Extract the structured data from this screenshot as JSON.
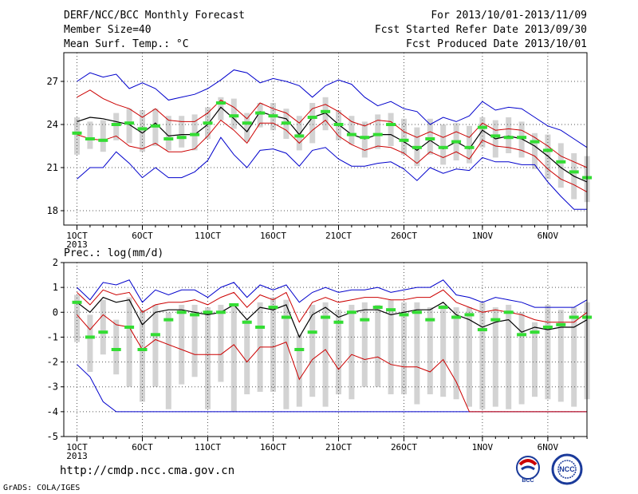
{
  "header": {
    "title_left": "DERF/NCC/BCC Monthly Forecast",
    "member_size": "Member Size=40",
    "variable": "Mean Surf. Temp.: °C",
    "forecast_period": "For 2013/10/01-2013/11/09",
    "refer_date": "Fcst Started Refer Date 2013/09/30",
    "produced_date": "Fcst Produced Date 2013/10/01"
  },
  "lower_label": "Prec.: log(mm/d)",
  "footer": {
    "url": "http://cmdp.ncc.cma.gov.cn",
    "credit": "GrADS: COLA/IGES"
  },
  "logos": {
    "bcc": "BCC",
    "ncc": "NCC"
  },
  "colors": {
    "envelope": "#0000cc",
    "spread": "#cc0000",
    "mean": "#000000",
    "median": "#33dd33",
    "box": "#d3d3d3"
  },
  "chart_data": [
    {
      "type": "line",
      "x_tick_labels": [
        "1OCT\n2013",
        "6OCT",
        "11OCT",
        "16OCT",
        "21OCT",
        "26OCT",
        "1NOV",
        "6NOV"
      ],
      "x_tick_days": [
        1,
        6,
        11,
        16,
        21,
        26,
        32,
        37
      ],
      "x": [
        1,
        2,
        3,
        4,
        5,
        6,
        7,
        8,
        9,
        10,
        11,
        12,
        13,
        14,
        15,
        16,
        17,
        18,
        19,
        20,
        21,
        22,
        23,
        24,
        25,
        26,
        27,
        28,
        29,
        30,
        31,
        32,
        33,
        34,
        35,
        36,
        37,
        38,
        39,
        40
      ],
      "ylim": [
        17,
        29
      ],
      "yticks": [
        18,
        21,
        24,
        27
      ],
      "grid": true,
      "series": [
        {
          "role": "max",
          "values": [
            27.0,
            27.6,
            27.3,
            27.5,
            26.5,
            26.9,
            26.5,
            25.7,
            25.9,
            26.1,
            26.5,
            27.1,
            27.8,
            27.6,
            26.9,
            27.2,
            27.0,
            26.7,
            25.9,
            26.7,
            27.1,
            26.8,
            25.9,
            25.3,
            25.6,
            25.1,
            24.9,
            24.0,
            24.5,
            24.2,
            24.6,
            25.6,
            25.0,
            25.2,
            25.1,
            24.5,
            23.9,
            23.6,
            23.0,
            22.4
          ]
        },
        {
          "role": "upper",
          "values": [
            25.9,
            26.4,
            25.8,
            25.4,
            25.1,
            24.5,
            25.1,
            24.3,
            24.2,
            24.2,
            24.8,
            25.7,
            25.2,
            24.4,
            25.5,
            25.1,
            24.8,
            24.1,
            25.1,
            25.4,
            24.9,
            24.2,
            23.9,
            24.3,
            24.2,
            23.5,
            23.1,
            23.5,
            23.1,
            23.5,
            23.1,
            24.1,
            23.6,
            23.7,
            23.6,
            23.1,
            22.5,
            21.8,
            21.4,
            21.0
          ]
        },
        {
          "role": "mean",
          "values": [
            24.2,
            24.5,
            24.4,
            24.2,
            24.0,
            23.4,
            24.1,
            23.2,
            23.3,
            23.3,
            24.0,
            25.2,
            24.4,
            23.5,
            24.9,
            24.6,
            24.4,
            23.3,
            24.5,
            24.8,
            24.0,
            23.3,
            23.0,
            23.3,
            23.3,
            22.8,
            22.2,
            22.9,
            22.3,
            22.8,
            22.3,
            23.6,
            23.0,
            23.2,
            23.0,
            22.5,
            21.8,
            21.0,
            20.4,
            20.0
          ]
        },
        {
          "role": "lower",
          "values": [
            23.3,
            23.0,
            22.9,
            23.2,
            22.5,
            22.3,
            22.7,
            22.1,
            22.1,
            22.3,
            23.2,
            24.3,
            23.6,
            22.7,
            24.1,
            24.1,
            23.6,
            22.7,
            23.6,
            24.3,
            23.2,
            22.6,
            22.2,
            22.5,
            22.4,
            22.0,
            21.3,
            22.1,
            21.7,
            22.1,
            21.6,
            22.9,
            22.5,
            22.4,
            22.2,
            21.8,
            20.9,
            20.2,
            19.8,
            19.3
          ]
        },
        {
          "role": "min",
          "values": [
            20.2,
            21.0,
            21.0,
            22.1,
            21.3,
            20.3,
            21.0,
            20.3,
            20.3,
            20.7,
            21.5,
            23.1,
            21.9,
            21.0,
            22.2,
            22.3,
            22.0,
            21.1,
            22.2,
            22.4,
            21.6,
            21.1,
            21.1,
            21.3,
            21.4,
            20.9,
            20.1,
            21.0,
            20.6,
            20.9,
            20.8,
            21.7,
            21.4,
            21.4,
            21.2,
            21.2,
            20.0,
            19.0,
            18.1,
            18.1
          ]
        },
        {
          "role": "median",
          "values": [
            23.4,
            23.0,
            22.9,
            24.0,
            24.1,
            23.7,
            23.9,
            23.0,
            23.1,
            23.3,
            24.1,
            25.5,
            24.6,
            24.1,
            24.8,
            24.6,
            24.1,
            23.2,
            24.5,
            24.9,
            24.0,
            23.3,
            23.1,
            23.3,
            24.0,
            22.9,
            22.4,
            23.0,
            22.4,
            22.8,
            22.4,
            23.8,
            23.2,
            23.1,
            23.1,
            22.8,
            22.2,
            21.4,
            20.7,
            20.3
          ]
        },
        {
          "role": "box_high",
          "values": [
            24.5,
            24.2,
            24.3,
            24.8,
            25.1,
            25.0,
            25.1,
            24.6,
            24.6,
            24.7,
            25.2,
            25.9,
            25.8,
            24.8,
            25.5,
            25.5,
            25.1,
            24.6,
            25.5,
            25.9,
            25.0,
            24.6,
            24.2,
            24.7,
            24.8,
            24.4,
            23.8,
            24.4,
            24.0,
            24.1,
            23.9,
            24.5,
            24.3,
            24.5,
            24.2,
            23.4,
            23.3,
            22.7,
            22.0,
            21.8
          ]
        },
        {
          "role": "box_low",
          "values": [
            21.9,
            22.3,
            22.1,
            22.9,
            22.7,
            22.1,
            22.5,
            22.2,
            22.4,
            22.2,
            23.0,
            24.3,
            23.7,
            22.8,
            23.8,
            23.6,
            23.0,
            22.2,
            22.7,
            23.6,
            22.9,
            22.6,
            21.7,
            22.3,
            22.5,
            21.9,
            21.1,
            21.9,
            21.2,
            21.5,
            21.3,
            22.4,
            21.7,
            22.0,
            21.7,
            20.9,
            20.2,
            19.6,
            18.8,
            18.6
          ]
        }
      ]
    },
    {
      "type": "line",
      "x_tick_labels": [
        "1OCT\n2013",
        "6OCT",
        "11OCT",
        "16OCT",
        "21OCT",
        "26OCT",
        "1NOV",
        "6NOV"
      ],
      "x_tick_days": [
        1,
        6,
        11,
        16,
        21,
        26,
        32,
        37
      ],
      "x": [
        1,
        2,
        3,
        4,
        5,
        6,
        7,
        8,
        9,
        10,
        11,
        12,
        13,
        14,
        15,
        16,
        17,
        18,
        19,
        20,
        21,
        22,
        23,
        24,
        25,
        26,
        27,
        28,
        29,
        30,
        31,
        32,
        33,
        34,
        35,
        36,
        37,
        38,
        39,
        40
      ],
      "ylim": [
        -5,
        2
      ],
      "yticks": [
        -5,
        -4,
        -3,
        -2,
        -1,
        0,
        1,
        2
      ],
      "ylabel": "Prec.: log(mm/d)",
      "grid": true,
      "series": [
        {
          "role": "max",
          "values": [
            1.0,
            0.5,
            1.2,
            1.1,
            1.3,
            0.4,
            0.9,
            0.7,
            0.9,
            0.9,
            0.6,
            1.0,
            1.2,
            0.6,
            1.1,
            0.9,
            1.1,
            0.4,
            0.8,
            1.0,
            0.8,
            0.9,
            0.9,
            1.0,
            0.8,
            0.9,
            1.0,
            1.0,
            1.3,
            0.7,
            0.6,
            0.4,
            0.6,
            0.5,
            0.4,
            0.2,
            0.2,
            0.2,
            0.2,
            0.5
          ]
        },
        {
          "role": "upper",
          "values": [
            0.8,
            0.3,
            0.9,
            0.7,
            0.8,
            0.0,
            0.3,
            0.4,
            0.4,
            0.5,
            0.3,
            0.6,
            0.8,
            0.2,
            0.7,
            0.5,
            0.8,
            -0.4,
            0.4,
            0.6,
            0.4,
            0.5,
            0.6,
            0.6,
            0.5,
            0.5,
            0.6,
            0.6,
            0.9,
            0.4,
            0.2,
            0.0,
            0.1,
            0.0,
            -0.1,
            -0.3,
            -0.4,
            -0.4,
            -0.4,
            0.0
          ]
        },
        {
          "role": "mean",
          "values": [
            0.4,
            0.0,
            0.6,
            0.4,
            0.5,
            -0.5,
            0.0,
            0.1,
            0.1,
            0.0,
            -0.1,
            0.0,
            0.3,
            -0.3,
            0.2,
            0.1,
            0.3,
            -1.0,
            -0.1,
            0.2,
            -0.2,
            0.0,
            0.1,
            0.1,
            -0.1,
            0.0,
            0.1,
            0.1,
            0.4,
            -0.1,
            -0.3,
            -0.6,
            -0.4,
            -0.3,
            -0.8,
            -0.6,
            -0.7,
            -0.6,
            -0.6,
            -0.3
          ]
        },
        {
          "role": "lower",
          "values": [
            -0.1,
            -0.7,
            -0.1,
            -0.5,
            -0.6,
            -1.5,
            -1.1,
            -1.3,
            -1.5,
            -1.7,
            -1.7,
            -1.7,
            -1.3,
            -2.0,
            -1.4,
            -1.4,
            -1.2,
            -2.7,
            -1.9,
            -1.5,
            -2.3,
            -1.7,
            -1.9,
            -1.8,
            -2.1,
            -2.2,
            -2.2,
            -2.4,
            -1.9,
            -2.8,
            -4.0,
            -4.0,
            -4.0,
            -4.0,
            -4.0,
            -4.0,
            -4.0,
            -4.0,
            -4.0,
            -4.0
          ]
        },
        {
          "role": "min",
          "values": [
            -2.1,
            -2.6,
            -3.6,
            -4.0,
            -4.0,
            -4.0,
            -4.0,
            -4.0,
            -4.0,
            -4.0,
            -4.0,
            -4.0,
            -4.0,
            -4.0,
            -4.0,
            -4.0,
            -4.0,
            -4.0,
            -4.0,
            -4.0,
            -4.0,
            -4.0,
            -4.0,
            -4.0,
            -4.0,
            -4.0,
            -4.0,
            -4.0,
            -4.0,
            -4.0,
            -4.0,
            -4.0,
            -4.0,
            -4.0,
            -4.0,
            -4.0,
            -4.0,
            -4.0,
            -4.0,
            -4.0
          ]
        },
        {
          "role": "median",
          "values": [
            0.4,
            -1.0,
            -0.8,
            -1.5,
            -0.6,
            -1.5,
            -0.9,
            -0.3,
            0.0,
            -0.1,
            0.0,
            0.0,
            0.3,
            -0.4,
            -0.6,
            0.2,
            -0.2,
            -1.5,
            -0.8,
            -0.2,
            -0.4,
            0.0,
            -0.3,
            0.2,
            0.1,
            -0.1,
            0.0,
            -0.3,
            0.2,
            -0.2,
            -0.1,
            -0.7,
            -0.3,
            0.0,
            -0.9,
            -0.8,
            -0.6,
            -0.5,
            -0.2,
            -0.2
          ]
        },
        {
          "role": "box_high",
          "values": [
            0.7,
            -0.1,
            0.5,
            -0.3,
            0.6,
            0.1,
            0.3,
            0.0,
            0.3,
            0.3,
            0.2,
            0.3,
            0.3,
            -0.3,
            0.4,
            0.6,
            0.5,
            -0.9,
            0.3,
            0.4,
            0.1,
            0.3,
            0.4,
            0.3,
            0.5,
            0.4,
            0.4,
            0.2,
            0.3,
            0.2,
            0.2,
            0.4,
            0.2,
            0.3,
            0.0,
            -0.4,
            0.3,
            0.1,
            0.2,
            0.4
          ]
        },
        {
          "role": "box_low",
          "values": [
            -1.2,
            -2.4,
            -1.7,
            -2.5,
            -3.0,
            -3.6,
            -3.0,
            -3.9,
            -2.9,
            -2.6,
            -3.9,
            -2.8,
            -4.0,
            -3.3,
            -3.2,
            -3.2,
            -3.9,
            -3.8,
            -3.4,
            -3.8,
            -3.3,
            -3.5,
            -3.0,
            -3.0,
            -3.3,
            -3.3,
            -3.7,
            -3.3,
            -3.4,
            -3.5,
            -3.8,
            -3.9,
            -3.8,
            -3.9,
            -3.7,
            -3.4,
            -3.5,
            -3.6,
            -3.8,
            -3.5
          ]
        }
      ]
    }
  ]
}
